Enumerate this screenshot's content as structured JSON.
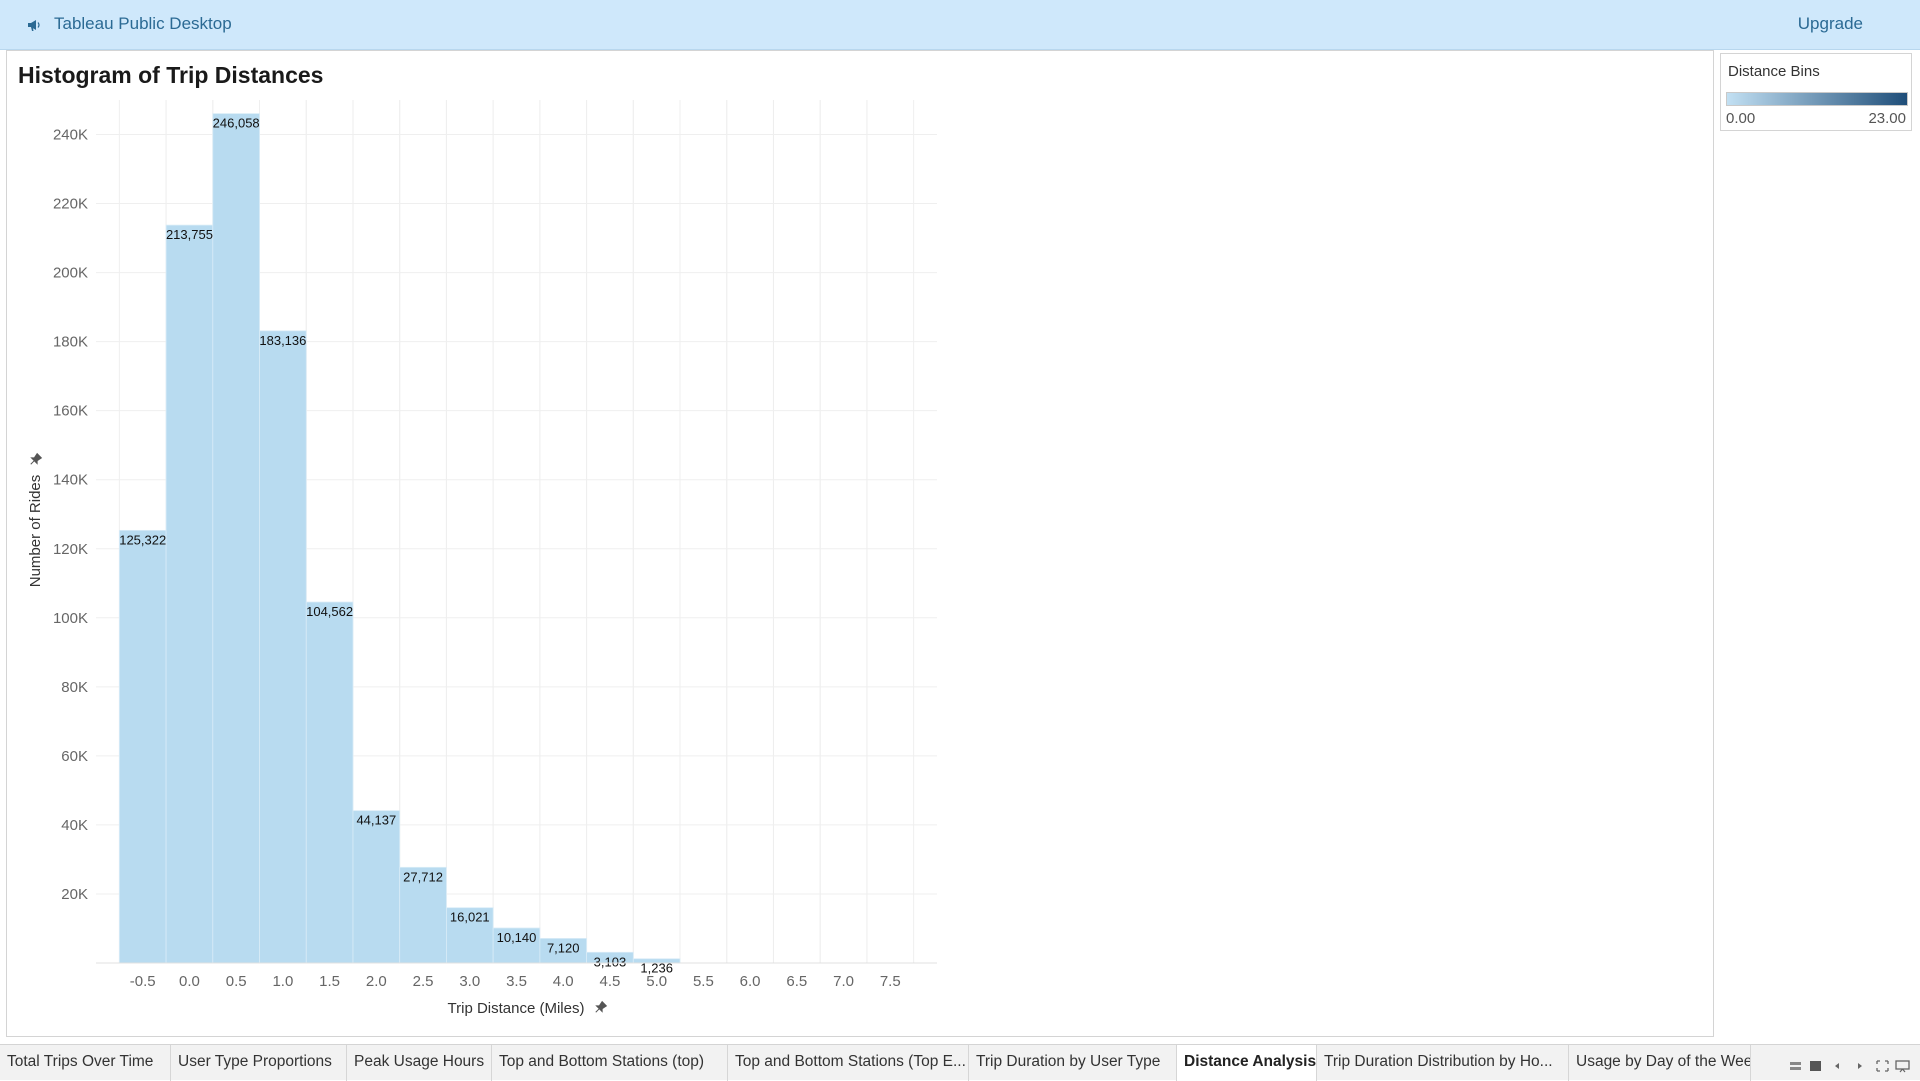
{
  "app": {
    "title": "Tableau Public Desktop",
    "upgrade_label": "Upgrade"
  },
  "sheet": {
    "title": "Histogram of Trip Distances"
  },
  "legend": {
    "title": "Distance Bins",
    "min_label": "0.00",
    "max_label": "23.00",
    "color_start": "#c2e0f3",
    "color_end": "#1f4e79"
  },
  "chart_data": {
    "type": "bar",
    "title": "Histogram of Trip Distances",
    "xlabel": "Trip Distance (Miles)",
    "ylabel": "Number of Rides",
    "bin_width": 0.5,
    "bins": [
      {
        "start": -0.5,
        "value": 125322,
        "label": "125,322"
      },
      {
        "start": 0.0,
        "value": 213755,
        "label": "213,755"
      },
      {
        "start": 0.5,
        "value": 246058,
        "label": "246,058"
      },
      {
        "start": 1.0,
        "value": 183136,
        "label": "183,136"
      },
      {
        "start": 1.5,
        "value": 104562,
        "label": "104,562"
      },
      {
        "start": 2.0,
        "value": 44137,
        "label": "44,137"
      },
      {
        "start": 2.5,
        "value": 27712,
        "label": "27,712"
      },
      {
        "start": 3.0,
        "value": 16021,
        "label": "16,021"
      },
      {
        "start": 3.5,
        "value": 10140,
        "label": "10,140"
      },
      {
        "start": 4.0,
        "value": 7120,
        "label": "7,120"
      },
      {
        "start": 4.5,
        "value": 3103,
        "label": "3,103"
      },
      {
        "start": 5.0,
        "value": 1236,
        "label": "1,236"
      }
    ],
    "xticks": [
      "-0.5",
      "0.0",
      "0.5",
      "1.0",
      "1.5",
      "2.0",
      "2.5",
      "3.0",
      "3.5",
      "4.0",
      "4.5",
      "5.0",
      "5.5",
      "6.0",
      "6.5",
      "7.0",
      "7.5"
    ],
    "yticks": [
      {
        "value": 20000,
        "label": "20K"
      },
      {
        "value": 40000,
        "label": "40K"
      },
      {
        "value": 60000,
        "label": "60K"
      },
      {
        "value": 80000,
        "label": "80K"
      },
      {
        "value": 100000,
        "label": "100K"
      },
      {
        "value": 120000,
        "label": "120K"
      },
      {
        "value": 140000,
        "label": "140K"
      },
      {
        "value": 160000,
        "label": "160K"
      },
      {
        "value": 180000,
        "label": "180K"
      },
      {
        "value": 200000,
        "label": "200K"
      },
      {
        "value": 220000,
        "label": "220K"
      },
      {
        "value": 240000,
        "label": "240K"
      }
    ],
    "ylim": [
      0,
      250000
    ],
    "xlim": [
      -1.0,
      8.0
    ],
    "grid": true,
    "bar_color": "#b8dbf0",
    "legend_placement": "right"
  },
  "tabs": [
    {
      "label": "Total Trips Over Time",
      "active": false
    },
    {
      "label": "User Type Proportions",
      "active": false
    },
    {
      "label": "Peak Usage Hours",
      "active": false
    },
    {
      "label": "Top and Bottom Stations (top)",
      "active": false
    },
    {
      "label": "Top and Bottom Stations (Top E...",
      "active": false
    },
    {
      "label": "Trip Duration by User Type",
      "active": false
    },
    {
      "label": "Distance Analysis",
      "active": true
    },
    {
      "label": "Trip Duration Distribution by Ho...",
      "active": false
    },
    {
      "label": "Usage by Day of the Week",
      "active": false
    }
  ],
  "nav_icons": [
    "show-sheet-sorter-icon",
    "show-filmstrip-icon",
    "previous-sheet-icon",
    "next-sheet-icon",
    "present-mode-icon",
    "presentation-icon"
  ]
}
